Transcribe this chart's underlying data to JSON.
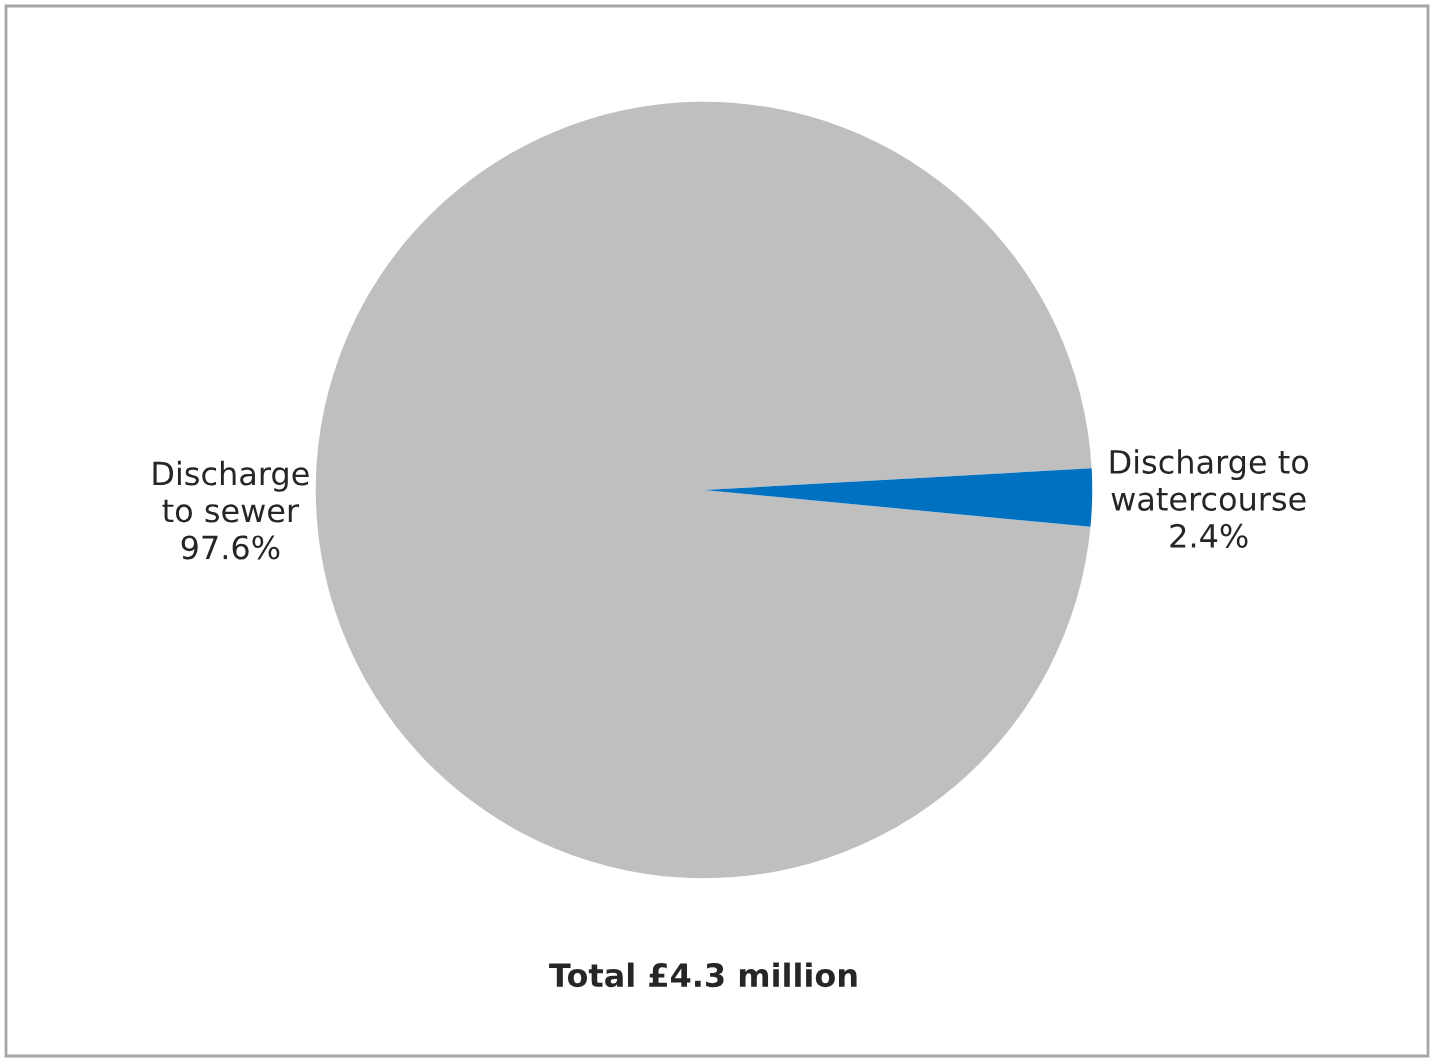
{
  "chart_data": {
    "type": "pie",
    "categories": [
      "Discharge\nto sewer",
      "Discharge to\nwatercourse"
    ],
    "values": [
      97.6,
      2.4
    ],
    "colors": [
      "#bfbfbf",
      "#0070c0"
    ],
    "value_labels": [
      "97.6%",
      "2.4%"
    ],
    "annotations": [
      "Total £4.3 million"
    ],
    "legend": false
  }
}
